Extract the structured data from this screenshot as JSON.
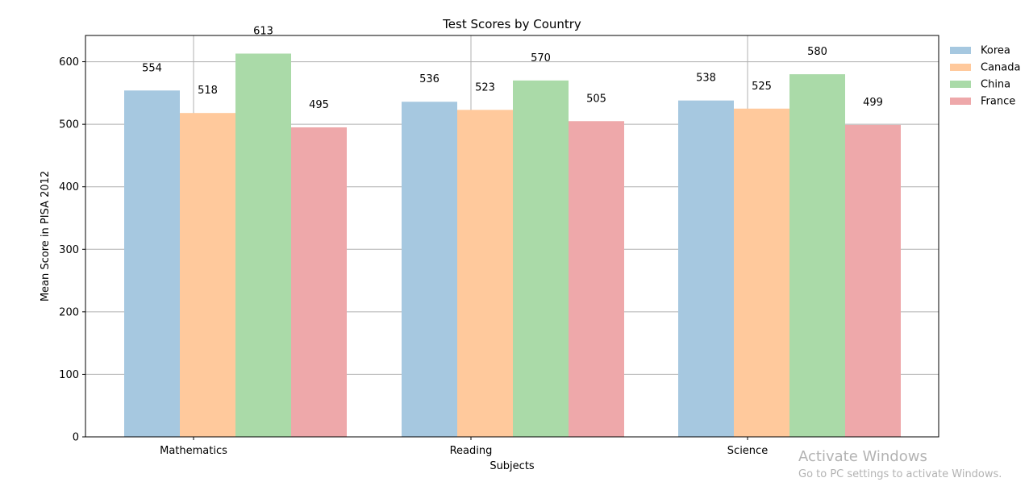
{
  "chart_data": {
    "type": "bar",
    "title": "Test Scores by Country",
    "xlabel": "Subjects",
    "ylabel": "Mean Score in PISA 2012",
    "categories": [
      "Mathematics",
      "Reading",
      "Science"
    ],
    "series": [
      {
        "name": "Korea",
        "values": [
          554,
          536,
          538
        ],
        "color": "#a6c8e0"
      },
      {
        "name": "Canada",
        "values": [
          518,
          523,
          525
        ],
        "color": "#ffc99c"
      },
      {
        "name": "China",
        "values": [
          613,
          570,
          580
        ],
        "color": "#aadaa8"
      },
      {
        "name": "France",
        "values": [
          495,
          505,
          499
        ],
        "color": "#eea8aa"
      }
    ],
    "ylim": [
      0,
      642
    ],
    "yticks": [
      0,
      100,
      200,
      300,
      400,
      500,
      600
    ],
    "grid": true,
    "legend_position": "outside-top-right"
  },
  "watermark": {
    "title": "Activate Windows",
    "subtitle": "Go to PC settings to activate Windows."
  }
}
